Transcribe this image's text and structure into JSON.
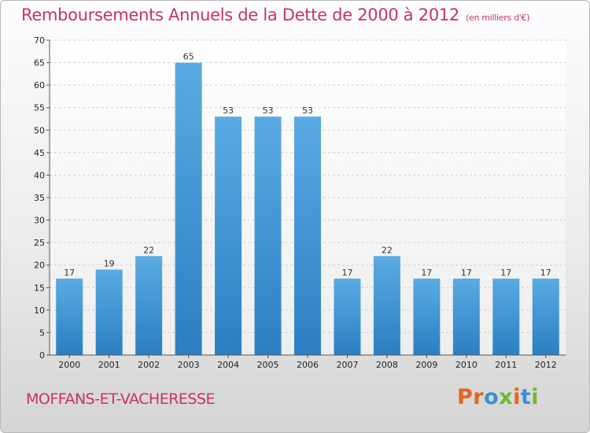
{
  "header": {
    "title": "Remboursements Annuels de la Dette de 2000 à 2012",
    "unit": "(en milliers d'€)"
  },
  "footer": {
    "city": "MOFFANS-ET-VACHERESSE",
    "logo_text": "Proxiti"
  },
  "colors": {
    "accent": "#c8306e",
    "bar_light": "#5aabe3",
    "bar_dark": "#2b7fc2",
    "logo_letters": [
      "#e4641c",
      "#e4641c",
      "#3a8fd6",
      "#74b62e",
      "#e4641c",
      "#3a8fd6",
      "#74b62e"
    ]
  },
  "chart_data": {
    "type": "bar",
    "title": "Remboursements Annuels de la Dette de 2000 à 2012",
    "subtitle": "(en milliers d'€)",
    "categories": [
      "2000",
      "2001",
      "2002",
      "2003",
      "2004",
      "2005",
      "2006",
      "2007",
      "2008",
      "2009",
      "2010",
      "2011",
      "2012"
    ],
    "values": [
      17,
      19,
      22,
      65,
      53,
      53,
      53,
      17,
      22,
      17,
      17,
      17,
      17
    ],
    "ylim": [
      0,
      70
    ],
    "yticks": [
      0,
      5,
      10,
      15,
      20,
      25,
      30,
      35,
      40,
      45,
      50,
      55,
      60,
      65,
      70
    ],
    "xlabel": "",
    "ylabel": "",
    "grid": true,
    "data_labels": true
  }
}
